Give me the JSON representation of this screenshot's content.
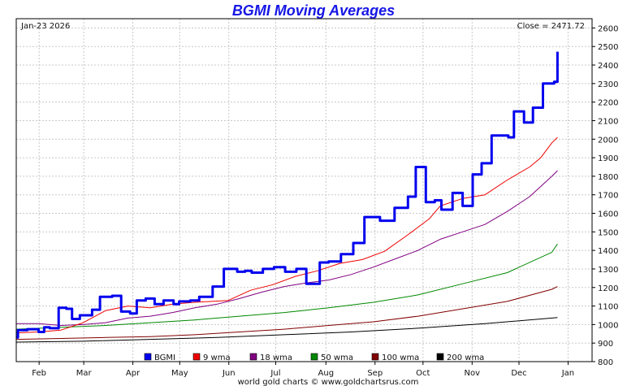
{
  "chart_data": {
    "type": "line",
    "title": "BGMI Moving Averages",
    "date_label": "Jan-23  2026",
    "close_label": "Close = 2471.72",
    "footer": "world gold charts © www.goldchartsrus.com",
    "ylim": [
      800,
      2650
    ],
    "y_ticks": [
      800,
      900,
      1000,
      1100,
      1200,
      1300,
      1400,
      1500,
      1600,
      1700,
      1800,
      1900,
      2000,
      2100,
      2200,
      2300,
      2400,
      2500,
      2600
    ],
    "x_range_weeks": [
      0,
      51.6
    ],
    "months": [
      {
        "label": "Feb",
        "week": 2.05
      },
      {
        "label": "Mar",
        "week": 6.05
      },
      {
        "label": "Apr",
        "week": 10.45
      },
      {
        "label": "May",
        "week": 14.65
      },
      {
        "label": "Jun",
        "week": 19.05
      },
      {
        "label": "Jul",
        "week": 23.25
      },
      {
        "label": "Aug",
        "week": 27.75
      },
      {
        "label": "Sep",
        "week": 32.15
      },
      {
        "label": "Oct",
        "week": 36.45
      },
      {
        "label": "Nov",
        "week": 40.85
      },
      {
        "label": "Dec",
        "week": 45.05
      },
      {
        "label": "Jan",
        "week": 49.45
      }
    ],
    "grid": true,
    "legend_position": "bottom",
    "colors": {
      "bgmi": "#0000ee",
      "wma9": "#ee0000",
      "wma18": "#800080",
      "wma50": "#008800",
      "wma100": "#800000",
      "wma200": "#000000"
    },
    "series": [
      {
        "name": "BGMI",
        "key": "bgmi",
        "step": true,
        "width": 3,
        "points": [
          [
            0,
            930
          ],
          [
            0.15,
            970
          ],
          [
            1,
            975
          ],
          [
            2,
            960
          ],
          [
            2.5,
            985
          ],
          [
            3,
            980
          ],
          [
            3.8,
            1090
          ],
          [
            4.5,
            1085
          ],
          [
            5,
            1030
          ],
          [
            5.7,
            1050
          ],
          [
            6.8,
            1080
          ],
          [
            7.5,
            1150
          ],
          [
            8.6,
            1155
          ],
          [
            9.4,
            1070
          ],
          [
            10.2,
            1060
          ],
          [
            10.8,
            1130
          ],
          [
            11.6,
            1140
          ],
          [
            12.4,
            1110
          ],
          [
            13.2,
            1130
          ],
          [
            14.1,
            1110
          ],
          [
            14.6,
            1125
          ],
          [
            15.6,
            1130
          ],
          [
            16.4,
            1150
          ],
          [
            17.6,
            1205
          ],
          [
            18.6,
            1300
          ],
          [
            19.8,
            1285
          ],
          [
            20.5,
            1290
          ],
          [
            21.1,
            1280
          ],
          [
            22.1,
            1300
          ],
          [
            23.1,
            1310
          ],
          [
            24.1,
            1285
          ],
          [
            25.1,
            1300
          ],
          [
            26,
            1220
          ],
          [
            27.2,
            1335
          ],
          [
            28,
            1340
          ],
          [
            29.1,
            1380
          ],
          [
            30.2,
            1440
          ],
          [
            31.2,
            1580
          ],
          [
            32.6,
            1560
          ],
          [
            33.9,
            1630
          ],
          [
            35.1,
            1690
          ],
          [
            35.8,
            1850
          ],
          [
            36.7,
            1660
          ],
          [
            37.5,
            1670
          ],
          [
            38.1,
            1620
          ],
          [
            39.1,
            1710
          ],
          [
            40,
            1640
          ],
          [
            40.9,
            1810
          ],
          [
            41.7,
            1870
          ],
          [
            42.6,
            2020
          ],
          [
            44.1,
            2010
          ],
          [
            44.6,
            2150
          ],
          [
            45.5,
            2090
          ],
          [
            46.3,
            2170
          ],
          [
            47.2,
            2300
          ],
          [
            48.2,
            2310
          ],
          [
            48.5,
            2472
          ]
        ]
      },
      {
        "name": "9 wma",
        "key": "wma9",
        "step": false,
        "width": 1,
        "points": [
          [
            0,
            955
          ],
          [
            2,
            960
          ],
          [
            4,
            970
          ],
          [
            6,
            1010
          ],
          [
            8,
            1075
          ],
          [
            10,
            1100
          ],
          [
            12,
            1090
          ],
          [
            14,
            1110
          ],
          [
            16,
            1120
          ],
          [
            19,
            1130
          ],
          [
            21,
            1185
          ],
          [
            23,
            1215
          ],
          [
            25,
            1260
          ],
          [
            27,
            1290
          ],
          [
            29,
            1330
          ],
          [
            31,
            1350
          ],
          [
            33,
            1395
          ],
          [
            35,
            1480
          ],
          [
            37,
            1570
          ],
          [
            38,
            1640
          ],
          [
            40,
            1680
          ],
          [
            42,
            1700
          ],
          [
            44,
            1780
          ],
          [
            46,
            1850
          ],
          [
            47,
            1900
          ],
          [
            48,
            1980
          ],
          [
            48.5,
            2010
          ]
        ]
      },
      {
        "name": "18 wma",
        "key": "wma18",
        "step": false,
        "width": 1,
        "points": [
          [
            0,
            1005
          ],
          [
            2,
            1005
          ],
          [
            4,
            995
          ],
          [
            6,
            1000
          ],
          [
            8,
            1010
          ],
          [
            10,
            1035
          ],
          [
            12,
            1045
          ],
          [
            14,
            1065
          ],
          [
            16,
            1090
          ],
          [
            18,
            1110
          ],
          [
            20,
            1140
          ],
          [
            22,
            1175
          ],
          [
            24,
            1205
          ],
          [
            26,
            1225
          ],
          [
            28,
            1240
          ],
          [
            30,
            1270
          ],
          [
            32,
            1310
          ],
          [
            34,
            1355
          ],
          [
            36,
            1400
          ],
          [
            38,
            1460
          ],
          [
            40,
            1500
          ],
          [
            42,
            1540
          ],
          [
            44,
            1610
          ],
          [
            46,
            1690
          ],
          [
            48,
            1800
          ],
          [
            48.5,
            1830
          ]
        ]
      },
      {
        "name": "50 wma",
        "key": "wma50",
        "step": false,
        "width": 1,
        "points": [
          [
            0,
            975
          ],
          [
            4,
            985
          ],
          [
            8,
            995
          ],
          [
            12,
            1010
          ],
          [
            16,
            1025
          ],
          [
            20,
            1045
          ],
          [
            24,
            1065
          ],
          [
            28,
            1090
          ],
          [
            32,
            1120
          ],
          [
            36,
            1160
          ],
          [
            40,
            1220
          ],
          [
            44,
            1280
          ],
          [
            48,
            1390
          ],
          [
            48.5,
            1435
          ]
        ]
      },
      {
        "name": "100 wma",
        "key": "wma100",
        "step": false,
        "width": 1,
        "points": [
          [
            0,
            920
          ],
          [
            4,
            925
          ],
          [
            8,
            930
          ],
          [
            12,
            935
          ],
          [
            16,
            945
          ],
          [
            20,
            960
          ],
          [
            24,
            975
          ],
          [
            28,
            995
          ],
          [
            32,
            1015
          ],
          [
            36,
            1045
          ],
          [
            40,
            1085
          ],
          [
            44,
            1125
          ],
          [
            48,
            1190
          ],
          [
            48.5,
            1205
          ]
        ]
      },
      {
        "name": "200 wma",
        "key": "wma200",
        "step": false,
        "width": 1,
        "points": [
          [
            0,
            905
          ],
          [
            6,
            910
          ],
          [
            12,
            920
          ],
          [
            18,
            930
          ],
          [
            24,
            945
          ],
          [
            30,
            960
          ],
          [
            36,
            980
          ],
          [
            42,
            1005
          ],
          [
            48,
            1035
          ],
          [
            48.5,
            1038
          ]
        ]
      }
    ]
  }
}
